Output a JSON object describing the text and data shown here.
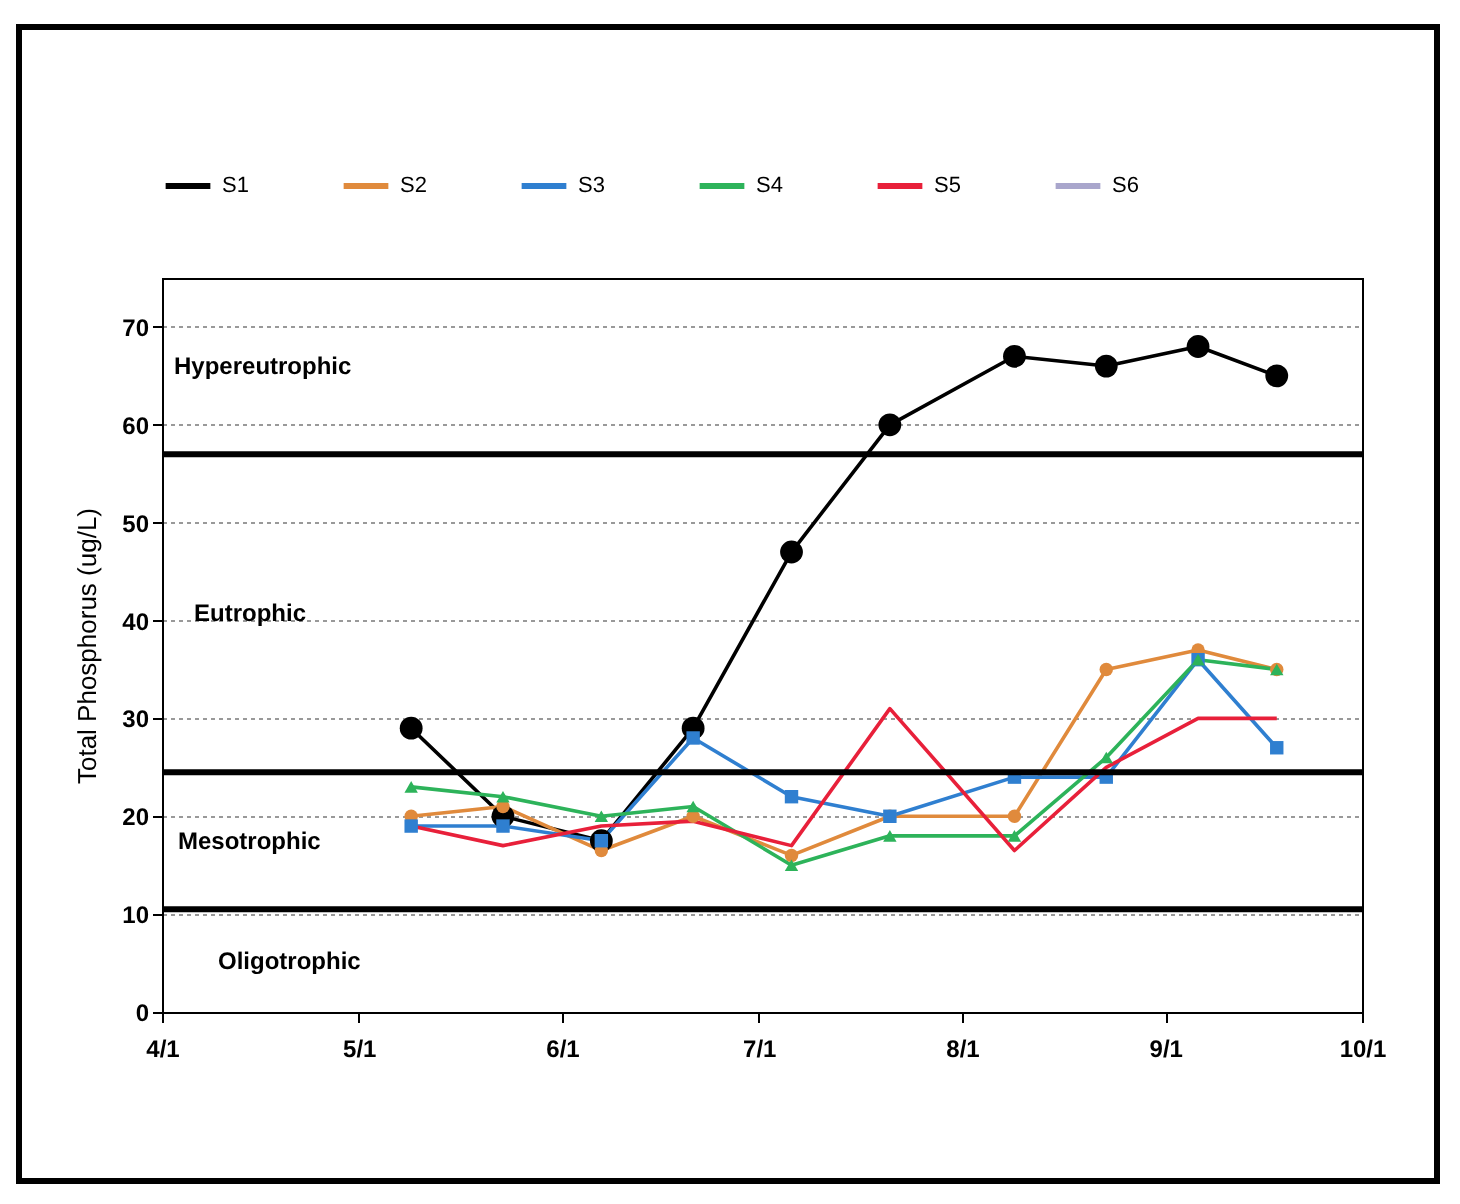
{
  "chart_data": {
    "type": "line",
    "ylabel": "Total Phosphorus (ug/L)",
    "x": [
      "--05-09",
      "--05-23",
      "--06-07",
      "--06-21",
      "--07-06",
      "--07-21",
      "--08-09",
      "--08-23",
      "--09-06",
      "--09-18"
    ],
    "series": [
      {
        "name": "S1",
        "color": "#000000",
        "marker": "circle",
        "values": [
          29,
          20,
          17.5,
          29,
          47,
          60,
          67,
          66,
          68,
          65
        ]
      },
      {
        "name": "S2",
        "color": "#e08a3c",
        "marker": "circle",
        "values": [
          20,
          21,
          16.5,
          20,
          16,
          20,
          20,
          35,
          37,
          35
        ]
      },
      {
        "name": "S3",
        "color": "#2f7fd0",
        "marker": "square",
        "values": [
          19,
          19,
          17.5,
          28,
          22,
          20,
          24,
          24,
          36,
          27
        ]
      },
      {
        "name": "S4",
        "color": "#2db35a",
        "marker": "triangle",
        "values": [
          23,
          22,
          20,
          21,
          15,
          18,
          18,
          26,
          36,
          35
        ]
      },
      {
        "name": "S5",
        "color": "#e8203a",
        "marker": "none",
        "values": [
          19,
          17,
          19,
          19.5,
          17,
          31,
          16.5,
          25,
          30,
          30
        ]
      },
      {
        "name": "S6",
        "color": "#a9a6cc",
        "marker": "cross",
        "values": [
          null,
          null,
          null,
          null,
          null,
          null,
          null,
          null,
          null,
          null
        ]
      }
    ],
    "xlim": [
      "--04-01",
      "--10-01"
    ],
    "xticks": [
      {
        "value": "--04-01",
        "label": "4/1"
      },
      {
        "value": "--05-01",
        "label": "5/1"
      },
      {
        "value": "--06-01",
        "label": "6/1"
      },
      {
        "value": "--07-01",
        "label": "7/1"
      },
      {
        "value": "--08-01",
        "label": "8/1"
      },
      {
        "value": "--09-01",
        "label": "9/1"
      },
      {
        "value": "--10-01",
        "label": "10/1"
      }
    ],
    "ylim": [
      0,
      75
    ],
    "yticks": [
      0,
      10,
      20,
      30,
      40,
      50,
      60,
      70
    ],
    "grid": "y",
    "legend": "top",
    "ref_lines": [
      {
        "axis": "y",
        "value": 57,
        "color": "#000000"
      },
      {
        "axis": "y",
        "value": 24.5,
        "color": "#000000"
      },
      {
        "axis": "y",
        "value": 10.5,
        "color": "#000000"
      }
    ],
    "annotations": [
      "Hypereutrophic",
      "Eutrophic",
      "Mesotrophic",
      "Oligotrophic"
    ]
  }
}
